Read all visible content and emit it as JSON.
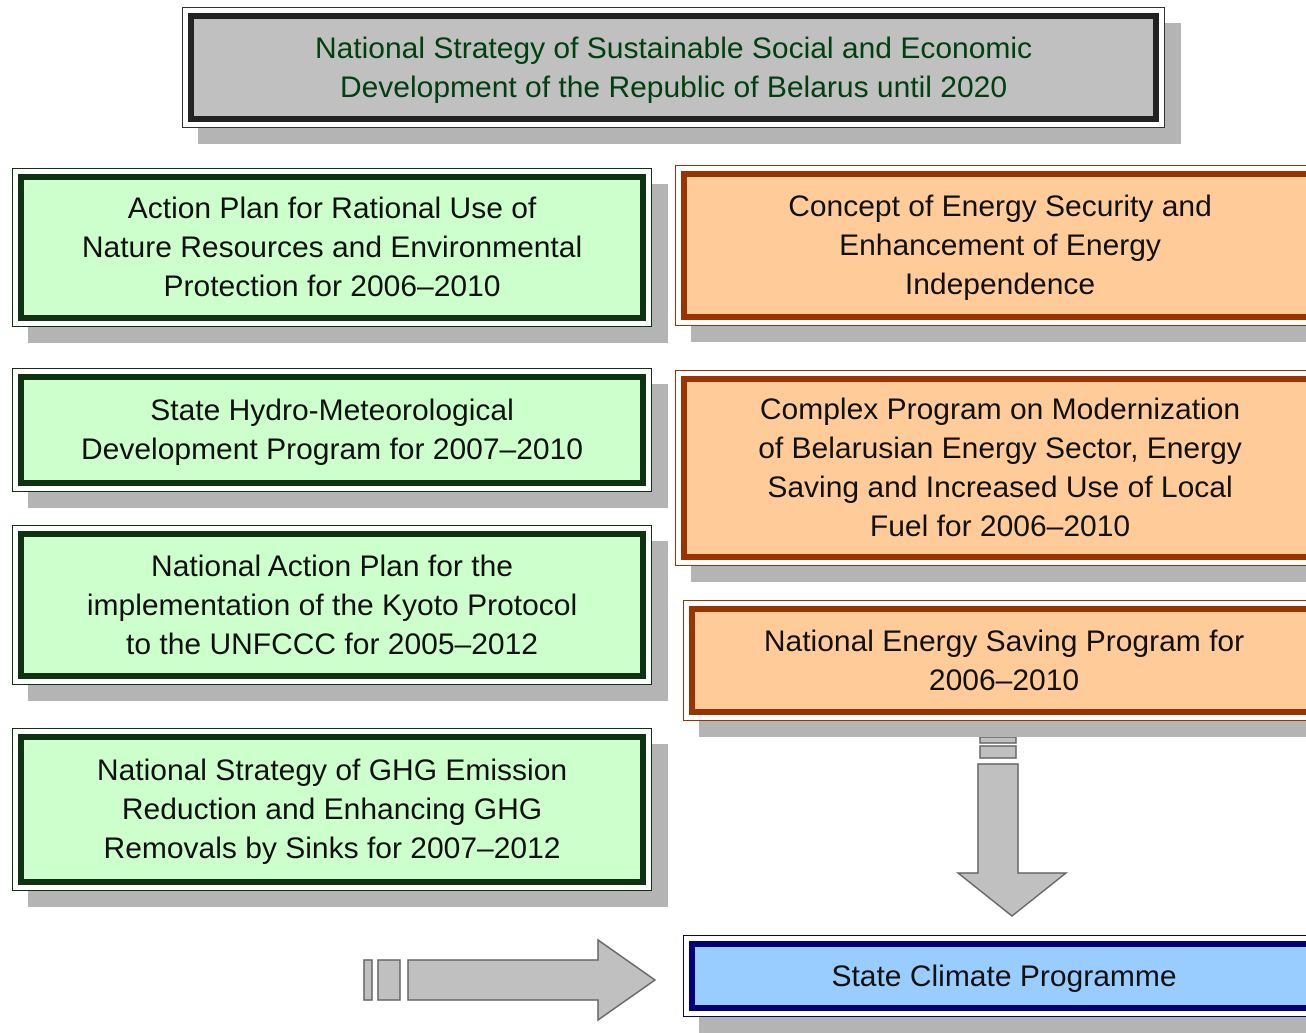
{
  "nodes": [
    {
      "lines": [
        "National Strategy of Sustainable Social and Economic",
        "Development of the Republic of Belarus until 2020"
      ]
    },
    {
      "lines": [
        "Action Plan for Rational Use of",
        "Nature Resources and Environmental",
        "Protection for 2006–2010"
      ]
    },
    {
      "lines": [
        "State Hydro-Meteorological",
        "Development Program for 2007–2010"
      ]
    },
    {
      "lines": [
        "National Action Plan for the",
        "implementation of the Kyoto Protocol",
        "to the UNFCCC for 2005–2012"
      ]
    },
    {
      "lines": [
        "National Strategy of GHG Emission",
        "Reduction and Enhancing GHG",
        "Removals by Sinks for 2007–2012"
      ]
    },
    {
      "lines": [
        "Concept of Energy Security and",
        "Enhancement of Energy",
        "Independence"
      ]
    },
    {
      "lines": [
        "Complex Program on Modernization",
        "of Belarusian Energy Sector, Energy",
        "Saving and Increased Use of Local",
        "Fuel for 2006–2010"
      ]
    },
    {
      "lines": [
        "National Energy Saving Program for",
        "2006–2010"
      ]
    },
    {
      "lines": [
        "State Climate Programme"
      ]
    }
  ]
}
